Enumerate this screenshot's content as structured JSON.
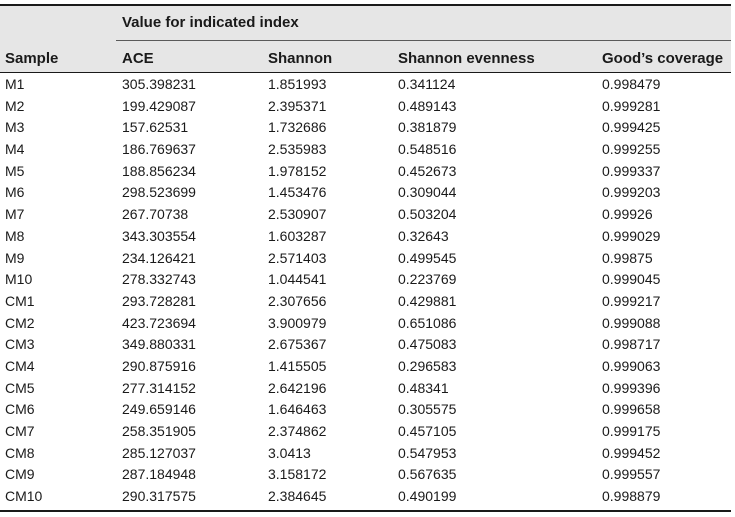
{
  "table": {
    "group_header": "Value for indicated index",
    "columns": [
      "Sample",
      "ACE",
      "Shannon",
      "Shannon evenness",
      "Good’s coverage"
    ],
    "rows": [
      [
        "M1",
        "305.398231",
        "1.851993",
        "0.341124",
        "0.998479"
      ],
      [
        "M2",
        "199.429087",
        "2.395371",
        "0.489143",
        "0.999281"
      ],
      [
        "M3",
        "157.62531",
        "1.732686",
        "0.381879",
        "0.999425"
      ],
      [
        "M4",
        "186.769637",
        "2.535983",
        "0.548516",
        "0.999255"
      ],
      [
        "M5",
        "188.856234",
        "1.978152",
        "0.452673",
        "0.999337"
      ],
      [
        "M6",
        "298.523699",
        "1.453476",
        "0.309044",
        "0.999203"
      ],
      [
        "M7",
        "267.70738",
        "2.530907",
        "0.503204",
        "0.99926"
      ],
      [
        "M8",
        "343.303554",
        "1.603287",
        "0.32643",
        "0.999029"
      ],
      [
        "M9",
        "234.126421",
        "2.571403",
        "0.499545",
        "0.99875"
      ],
      [
        "M10",
        "278.332743",
        "1.044541",
        "0.223769",
        "0.999045"
      ],
      [
        "CM1",
        "293.728281",
        "2.307656",
        "0.429881",
        "0.999217"
      ],
      [
        "CM2",
        "423.723694",
        "3.900979",
        "0.651086",
        "0.999088"
      ],
      [
        "CM3",
        "349.880331",
        "2.675367",
        "0.475083",
        "0.998717"
      ],
      [
        "CM4",
        "290.875916",
        "1.415505",
        "0.296583",
        "0.999063"
      ],
      [
        "CM5",
        "277.314152",
        "2.642196",
        "0.48341",
        "0.999396"
      ],
      [
        "CM6",
        "249.659146",
        "1.646463",
        "0.305575",
        "0.999658"
      ],
      [
        "CM7",
        "258.351905",
        "2.374862",
        "0.457105",
        "0.999175"
      ],
      [
        "CM8",
        "285.127037",
        "3.0413",
        "0.547953",
        "0.999452"
      ],
      [
        "CM9",
        "287.184948",
        "3.158172",
        "0.567635",
        "0.999557"
      ],
      [
        "CM10",
        "290.317575",
        "2.384645",
        "0.490199",
        "0.998879"
      ]
    ]
  }
}
